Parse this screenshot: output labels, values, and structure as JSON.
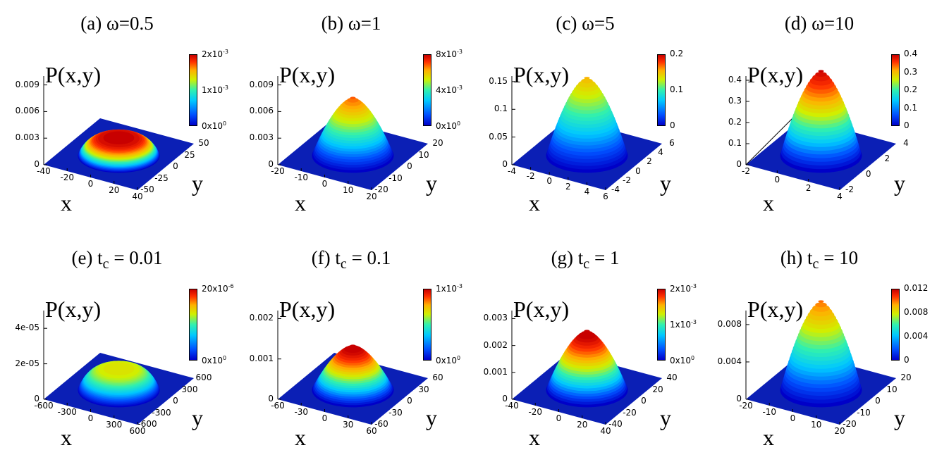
{
  "zlabel": "P(x,y)",
  "xlabel": "x",
  "ylabel": "y",
  "colormap": [
    "#0000c8",
    "#0050ff",
    "#00c8ff",
    "#30f0b0",
    "#d0f000",
    "#ffb000",
    "#ff3000",
    "#c80000"
  ],
  "chart_data": [
    {
      "type": "surface",
      "title_pre": "(a) ω=0.5",
      "title_sub": "",
      "title_post": "",
      "x_ticks": [
        "-40",
        "-20",
        "0",
        "20",
        "40"
      ],
      "y_ticks": [
        "50",
        "25",
        "0",
        "-25",
        "-50"
      ],
      "z_ticks": [
        "0",
        "0.003",
        "0.006",
        "0.009"
      ],
      "zlim": [
        0,
        0.01
      ],
      "peak": 0.002,
      "cb_ticks": [
        "2x10<sup>-3</sup>",
        "1x10<sup>-3</sup>",
        "0x10<sup>0</sup>"
      ],
      "cb_max": 0.002
    },
    {
      "type": "surface",
      "title_pre": "(b) ω=1",
      "title_sub": "",
      "title_post": "",
      "x_ticks": [
        "-20",
        "-10",
        "0",
        "10",
        "20"
      ],
      "y_ticks": [
        "20",
        "10",
        "0",
        "-10",
        "-20"
      ],
      "z_ticks": [
        "0",
        "0.003",
        "0.006",
        "0.009"
      ],
      "zlim": [
        0,
        0.01
      ],
      "peak": 0.0065,
      "cb_ticks": [
        "8x10<sup>-3</sup>",
        "4x10<sup>-3</sup>",
        "0x10<sup>0</sup>"
      ],
      "cb_max": 0.008
    },
    {
      "type": "surface",
      "title_pre": "(c) ω=5",
      "title_sub": "",
      "title_post": "",
      "x_ticks": [
        "-4",
        "-2",
        "0",
        "2",
        "4",
        "6"
      ],
      "y_ticks": [
        "6",
        "4",
        "2",
        "0",
        "-2",
        "-4"
      ],
      "z_ticks": [
        "0",
        "0.05",
        "0.1",
        "0.15"
      ],
      "zlim": [
        0,
        0.16
      ],
      "peak": 0.14,
      "cb_ticks": [
        "0.2",
        "0.1",
        "0"
      ],
      "cb_max": 0.2
    },
    {
      "type": "surface",
      "title_pre": "(d) ω=10",
      "title_sub": "",
      "title_post": "",
      "x_ticks": [
        "-2",
        "0",
        "2",
        "4"
      ],
      "y_ticks": [
        "4",
        "2",
        "0",
        "-2"
      ],
      "z_ticks": [
        "0",
        "0.1",
        "0.2",
        "0.3",
        "0.4"
      ],
      "zlim": [
        0,
        0.42
      ],
      "peak": 0.4,
      "cb_ticks": [
        "0.4",
        "0.3",
        "0.2",
        "0.1",
        "0"
      ],
      "cb_max": 0.4
    },
    {
      "type": "surface",
      "title_pre": "(e) t",
      "title_sub": "c",
      "title_post": " = 0.01",
      "x_ticks": [
        "-600",
        "-300",
        "0",
        "300",
        "600"
      ],
      "y_ticks": [
        "600",
        "300",
        "0",
        "-300",
        "-600"
      ],
      "z_ticks": [
        "0",
        "2e-05",
        "4e-05"
      ],
      "zlim": [
        0,
        5e-05
      ],
      "peak": 1.2e-05,
      "cb_ticks": [
        "20x10<sup>-6</sup>",
        "0x10<sup>0</sup>"
      ],
      "cb_max": 2e-05
    },
    {
      "type": "surface",
      "title_pre": "(f) t",
      "title_sub": "c",
      "title_post": " = 0.1",
      "x_ticks": [
        "-60",
        "-30",
        "0",
        "30",
        "60"
      ],
      "y_ticks": [
        "60",
        "30",
        "0",
        "-30",
        "-60"
      ],
      "z_ticks": [
        "0",
        "0.001",
        "0.002"
      ],
      "zlim": [
        0,
        0.0022
      ],
      "peak": 0.0011,
      "cb_ticks": [
        "1x10<sup>-3</sup>",
        "0x10<sup>0</sup>"
      ],
      "cb_max": 0.001
    },
    {
      "type": "surface",
      "title_pre": "(g) t",
      "title_sub": "c",
      "title_post": " = 1",
      "x_ticks": [
        "-40",
        "-20",
        "0",
        "20",
        "40"
      ],
      "y_ticks": [
        "40",
        "20",
        "0",
        "-20",
        "-40"
      ],
      "z_ticks": [
        "0",
        "0.001",
        "0.002",
        "0.003"
      ],
      "zlim": [
        0,
        0.0033
      ],
      "peak": 0.0022,
      "cb_ticks": [
        "2x10<sup>-3</sup>",
        "1x10<sup>-3</sup>",
        "0x10<sup>0</sup>"
      ],
      "cb_max": 0.002
    },
    {
      "type": "surface",
      "title_pre": "(h) t",
      "title_sub": "c",
      "title_post": " = 10",
      "x_ticks": [
        "-20",
        "-10",
        "0",
        "10",
        "20"
      ],
      "y_ticks": [
        "20",
        "10",
        "0",
        "-10",
        "-20"
      ],
      "z_ticks": [
        "0",
        "0.004",
        "0.008"
      ],
      "zlim": [
        0,
        0.0095
      ],
      "peak": 0.0095,
      "cb_ticks": [
        "0.012",
        "0.008",
        "0.004",
        "0"
      ],
      "cb_max": 0.012
    }
  ]
}
